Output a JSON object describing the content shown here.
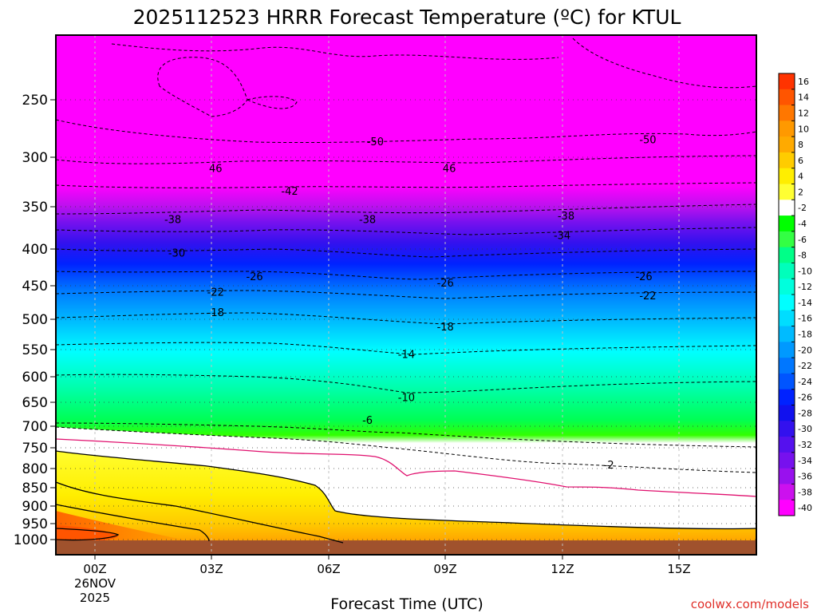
{
  "chart_data": {
    "type": "heatmap",
    "title": "2025112523 HRRR Forecast Temperature (ºC) for KTUL",
    "xlabel": "Forecast Time (UTC)",
    "ylabel": "",
    "watermark": "coolwx.com/models",
    "x_range_hours": [
      -1,
      17
    ],
    "x_ticks": [
      {
        "hour": 0,
        "label": "00Z"
      },
      {
        "hour": 3,
        "label": "03Z"
      },
      {
        "hour": 6,
        "label": "06Z"
      },
      {
        "hour": 9,
        "label": "09Z"
      },
      {
        "hour": 12,
        "label": "12Z"
      },
      {
        "hour": 15,
        "label": "15Z"
      }
    ],
    "date_label": [
      "26NOV",
      "2025"
    ],
    "y_scale": "log-pressure",
    "y_range_hpa": [
      1030,
      200
    ],
    "y_ticks": [
      "250",
      "300",
      "350",
      "400",
      "450",
      "500",
      "550",
      "600",
      "650",
      "700",
      "750",
      "800",
      "850",
      "900",
      "950",
      "1000"
    ],
    "colorbar": {
      "labels": [
        "16",
        "14",
        "12",
        "10",
        "8",
        "6",
        "4",
        "2",
        "-2",
        "-4",
        "-6",
        "-8",
        "-10",
        "-12",
        "-14",
        "-16",
        "-18",
        "-20",
        "-22",
        "-24",
        "-26",
        "-28",
        "-30",
        "-32",
        "-34",
        "-36",
        "-38",
        "-40"
      ],
      "colors": [
        "#ff3300",
        "#ff5500",
        "#ff7700",
        "#ff9900",
        "#ffaa00",
        "#ffcc00",
        "#ffee00",
        "#ffff33",
        "#ffffff",
        "#00ff00",
        "#33ff44",
        "#00ff88",
        "#00ffbb",
        "#00ffdd",
        "#00ffff",
        "#00ddff",
        "#00bbff",
        "#0099ff",
        "#0077ff",
        "#0055ff",
        "#0022ff",
        "#1111ee",
        "#3311ee",
        "#5511ee",
        "#7711ee",
        "#9911ee",
        "#cc11ee",
        "#ff00ff"
      ]
    },
    "contour_labels": [
      {
        "value": "-50",
        "hour": 7.2,
        "p": 285
      },
      {
        "value": "-50",
        "hour": 14.2,
        "p": 283
      },
      {
        "value": "46",
        "hour": 3.1,
        "p": 310
      },
      {
        "value": "46",
        "hour": 9.1,
        "p": 310
      },
      {
        "value": "-42",
        "hour": 5.0,
        "p": 333
      },
      {
        "value": "-38",
        "hour": 2.0,
        "p": 364
      },
      {
        "value": "-38",
        "hour": 7.0,
        "p": 364
      },
      {
        "value": "-38",
        "hour": 12.1,
        "p": 360
      },
      {
        "value": "-34",
        "hour": 12.0,
        "p": 383
      },
      {
        "value": "-30",
        "hour": 2.1,
        "p": 405
      },
      {
        "value": "-26",
        "hour": 4.1,
        "p": 436
      },
      {
        "value": "-26",
        "hour": 9.0,
        "p": 445
      },
      {
        "value": "-26",
        "hour": 14.1,
        "p": 436
      },
      {
        "value": "-22",
        "hour": 3.1,
        "p": 458
      },
      {
        "value": "-22",
        "hour": 14.2,
        "p": 463
      },
      {
        "value": "-18",
        "hour": 3.1,
        "p": 488
      },
      {
        "value": "-18",
        "hour": 9.0,
        "p": 511
      },
      {
        "value": "-14",
        "hour": 8.0,
        "p": 557
      },
      {
        "value": "-10",
        "hour": 8.0,
        "p": 638
      },
      {
        "value": "-6",
        "hour": 7.0,
        "p": 686
      },
      {
        "value": "-2",
        "hour": 13.2,
        "p": 789
      }
    ]
  }
}
